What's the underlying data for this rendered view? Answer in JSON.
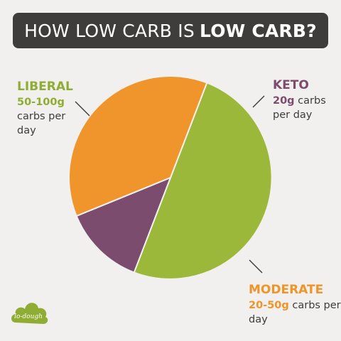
{
  "title": {
    "normal": "HOW LOW CARB IS",
    "bold": "LOW CARB?"
  },
  "labels": {
    "liberal": {
      "name": "LIBERAL",
      "amount": "50-100g",
      "rest_line1": "carbs per",
      "rest_line2": "day"
    },
    "keto": {
      "name": "KETO",
      "amount": "20g",
      "rest_line1": "carbs",
      "rest_line2": "per day"
    },
    "moderate": {
      "name": "MODERATE",
      "amount": "20-50g",
      "rest_line1": "carbs per",
      "rest_line2": "day"
    }
  },
  "logo": {
    "text": "lo-dough",
    "icon": "cloud-logo-icon",
    "color": "#8fac33"
  },
  "chart_data": {
    "type": "pie",
    "slices": [
      {
        "label": "LIBERAL",
        "value": 50,
        "color": "#9bb83a"
      },
      {
        "label": "KETO",
        "value": 13,
        "color": "#7b4c6d"
      },
      {
        "label": "MODERATE",
        "value": 37,
        "color": "#f0952b"
      }
    ],
    "start_angle_deg": 21
  }
}
